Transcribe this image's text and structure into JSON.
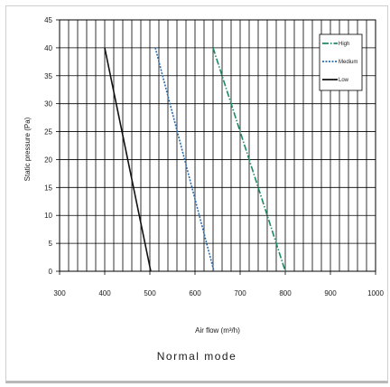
{
  "chart_data": {
    "type": "line",
    "title": "",
    "caption": "Normal mode",
    "xlabel": "Air flow  (m³/h)",
    "ylabel": "Static pressure (Pa)",
    "xlim": [
      300,
      1000
    ],
    "ylim": [
      0,
      45
    ],
    "x_ticks": [
      "300",
      "400",
      "500",
      "600",
      "700",
      "800",
      "900",
      "1000"
    ],
    "y_ticks": [
      "0",
      "5",
      "10",
      "15",
      "20",
      "25",
      "30",
      "35",
      "40",
      "45"
    ],
    "grid": true,
    "legend_position": "top-right",
    "series": [
      {
        "name": "High",
        "color": "#1a8a6a",
        "dash": "dash-dot",
        "points": [
          [
            640,
            40
          ],
          [
            800,
            0
          ]
        ]
      },
      {
        "name": "Medium",
        "color": "#2a6db0",
        "dash": "dotted",
        "points": [
          [
            512,
            40
          ],
          [
            642,
            0
          ]
        ]
      },
      {
        "name": "Low",
        "color": "#111111",
        "dash": "solid",
        "points": [
          [
            400,
            40
          ],
          [
            502,
            0
          ]
        ]
      }
    ]
  }
}
